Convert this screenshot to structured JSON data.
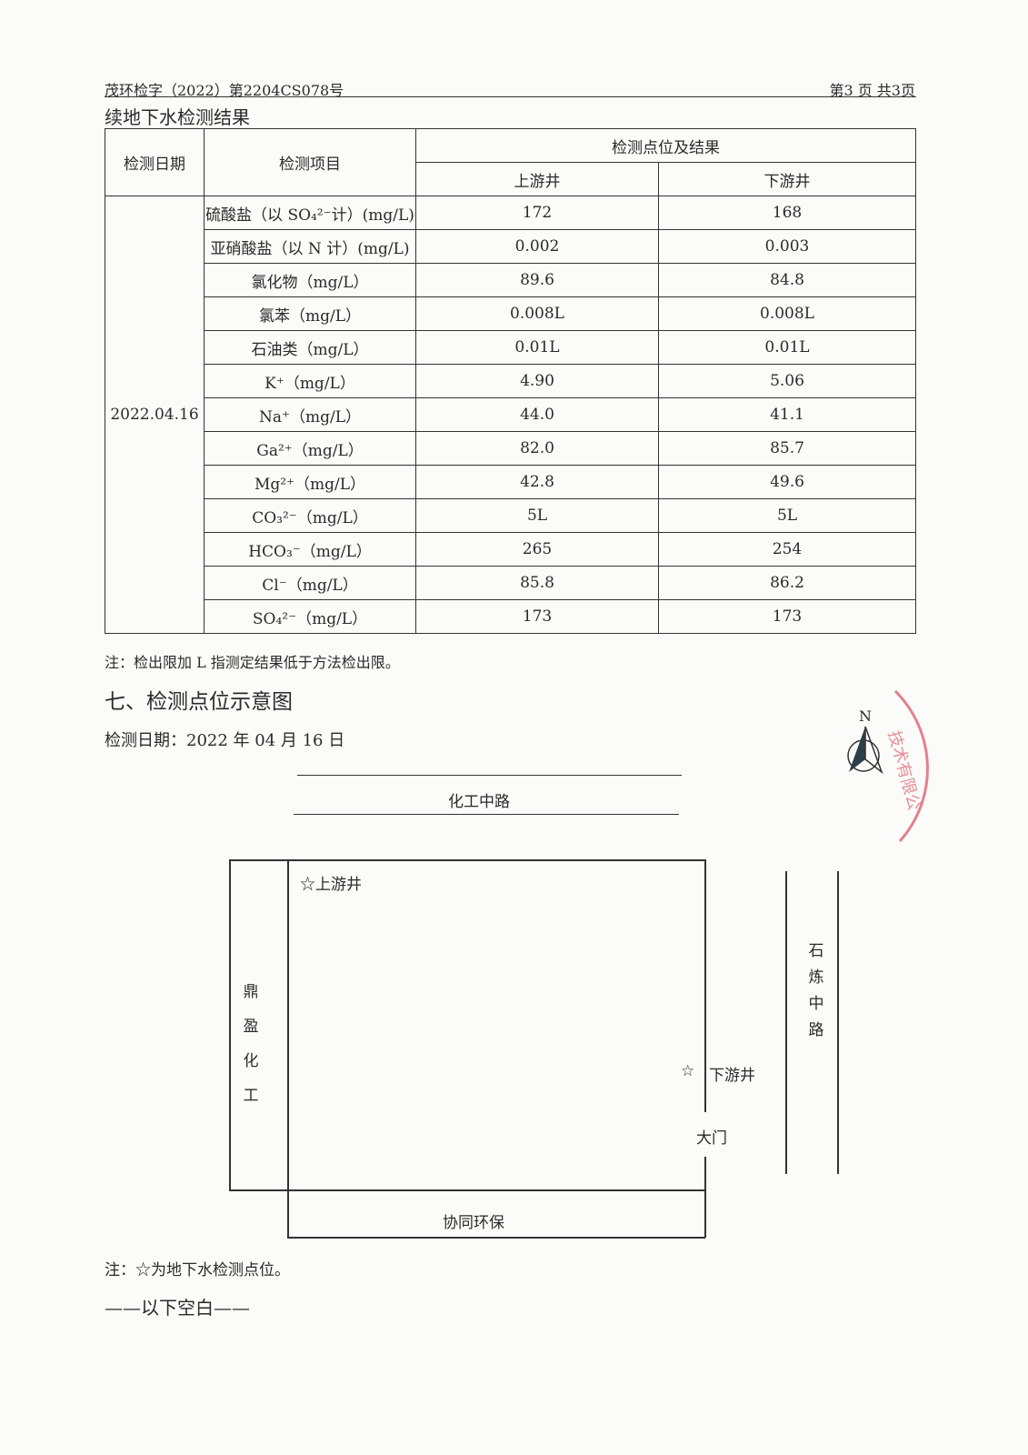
{
  "header": {
    "report_no": "茂环检字（2022）第2204CS078号",
    "page_info": "第3 页 共3页"
  },
  "table_title": "续地下水检测结果",
  "table": {
    "col_date": "检测日期",
    "col_item": "检测项目",
    "col_group": "检测点位及结果",
    "col_up": "上游井",
    "col_down": "下游井",
    "date": "2022.04.16",
    "rows": [
      {
        "item": "硫酸盐（以 SO₄²⁻计）(mg/L)",
        "up": "172",
        "down": "168"
      },
      {
        "item": "亚硝酸盐（以 N 计）(mg/L)",
        "up": "0.002",
        "down": "0.003"
      },
      {
        "item": "氯化物（mg/L）",
        "up": "89.6",
        "down": "84.8"
      },
      {
        "item": "氯苯（mg/L）",
        "up": "0.008L",
        "down": "0.008L"
      },
      {
        "item": "石油类（mg/L）",
        "up": "0.01L",
        "down": "0.01L"
      },
      {
        "item": "K⁺（mg/L）",
        "up": "4.90",
        "down": "5.06"
      },
      {
        "item": "Na⁺（mg/L）",
        "up": "44.0",
        "down": "41.1"
      },
      {
        "item": "Ga²⁺（mg/L）",
        "up": "82.0",
        "down": "85.7"
      },
      {
        "item": "Mg²⁺（mg/L）",
        "up": "42.8",
        "down": "49.6"
      },
      {
        "item": "CO₃²⁻（mg/L）",
        "up": "5L",
        "down": "5L"
      },
      {
        "item": "HCO₃⁻（mg/L）",
        "up": "265",
        "down": "254"
      },
      {
        "item": "Cl⁻（mg/L）",
        "up": "85.8",
        "down": "86.2"
      },
      {
        "item": "SO₄²⁻（mg/L）",
        "up": "173",
        "down": "173"
      }
    ],
    "note": "注：检出限加 L 指测定结果低于方法检出限。"
  },
  "section7": {
    "title": "七、检测点位示意图",
    "date": "检测日期：2022 年 04 月 16 日"
  },
  "map": {
    "north": "N",
    "road_top": "化工中路",
    "point_up": "☆上游井",
    "point_down_star": "☆",
    "point_down": "下游井",
    "gate": "大门",
    "left_neighbor": [
      "鼎",
      "盈",
      "化",
      "工"
    ],
    "right_road": [
      "石",
      "炼",
      "中",
      "路"
    ],
    "bottom_neighbor": "协同环保",
    "stamp_color": "#e06070"
  },
  "footer": {
    "note": "注：☆为地下水检测点位。",
    "end": "——以下空白——"
  }
}
